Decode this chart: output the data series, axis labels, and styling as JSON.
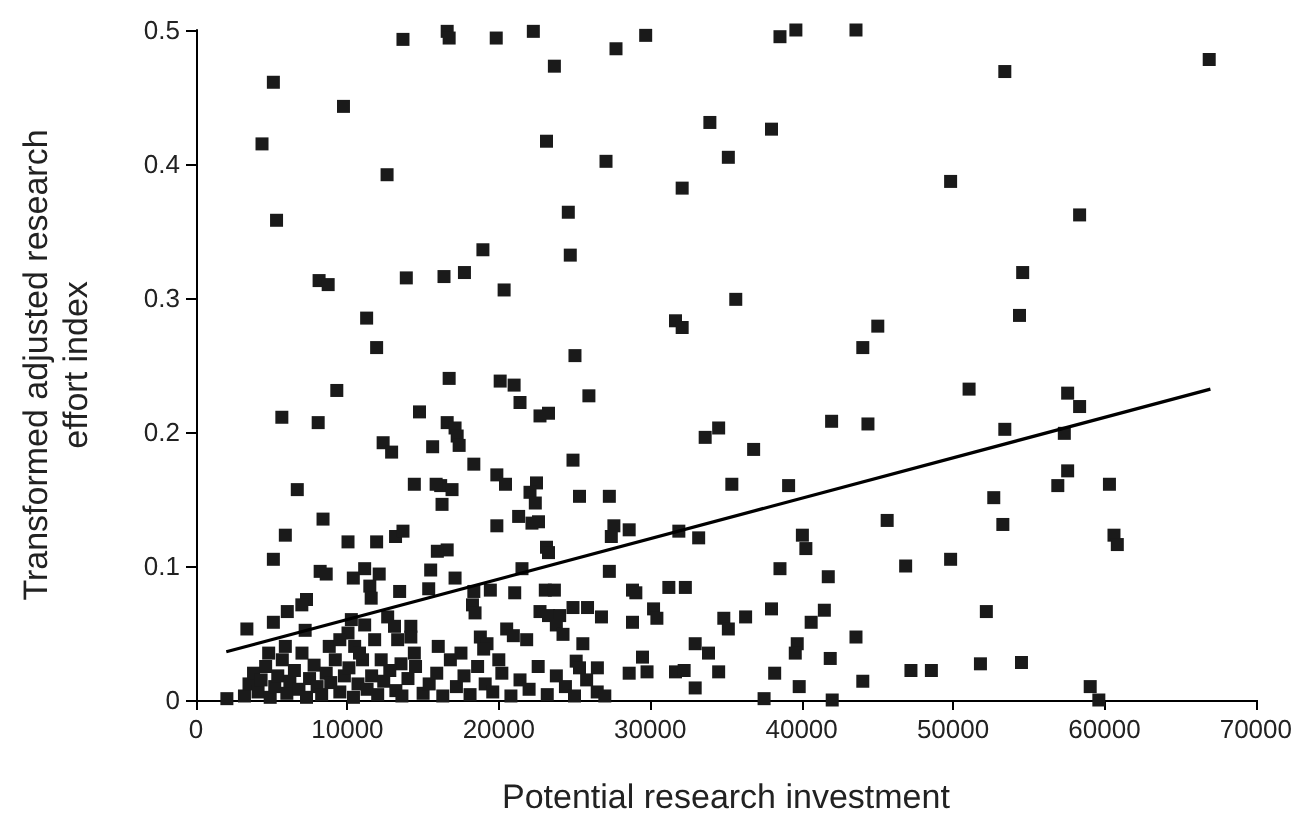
{
  "chart_data": {
    "type": "scatter",
    "xlabel": "Potential research investment",
    "ylabel": "Transformed adjusted research effort index",
    "xlim": [
      0,
      70000
    ],
    "xticks": [
      0,
      10000,
      20000,
      30000,
      40000,
      50000,
      60000,
      70000
    ],
    "ylim": [
      0,
      0.5
    ],
    "yticks": [
      0,
      0.1,
      0.2,
      0.3,
      0.4,
      0.5
    ],
    "grid": false,
    "marker": "square",
    "series": [
      {
        "color": "#1a1a1a",
        "x": [
          5110,
          4360,
          5320,
          9740,
          12620,
          13670,
          16590,
          16720,
          19830,
          22280,
          23670,
          23150,
          24590,
          24720,
          27740,
          29700,
          27080,
          32110,
          33940,
          35160,
          35650,
          18950,
          17730,
          16380,
          13890,
          8130,
          8730,
          20350,
          11270,
          11930,
          25030,
          31670,
          32110,
          38570,
          39620,
          43590,
          53420,
          66920,
          38010,
          49840,
          58360,
          54600,
          54390,
          45030,
          44040,
          51060,
          57570,
          58360,
          41980,
          44380,
          53420,
          57350,
          36830,
          34520,
          35390,
          39140,
          57570,
          56920,
          60330,
          52690,
          53290,
          45650,
          40050,
          40280,
          60630,
          60850,
          38570,
          41760,
          46870,
          49840,
          34860,
          35160,
          36300,
          38010,
          41500,
          40630,
          52200,
          43590,
          39710,
          39580,
          41890,
          38220,
          34520,
          47220,
          48570,
          51810,
          54520,
          44040,
          39840,
          37520,
          42020,
          59060,
          59630,
          16720,
          20090,
          21010,
          21400,
          25950,
          22720,
          23280,
          16590,
          17110,
          17250,
          17380,
          18350,
          24900,
          19870,
          20440,
          22490,
          22060,
          22410,
          25330,
          27300,
          16160,
          16910,
          16250,
          33630,
          21310,
          22190,
          22620,
          19870,
          27600,
          27430,
          28610,
          31890,
          33200,
          16590,
          23150,
          23280,
          27300,
          21530,
          17110,
          18350,
          19440,
          21050,
          23070,
          23670,
          28830,
          29050,
          31230,
          32320,
          18260,
          18430,
          22720,
          23280,
          24020,
          24900,
          25860,
          26780,
          28830,
          30220,
          30440,
          20520,
          20960,
          21840,
          23800,
          24240,
          25550,
          18780,
          19220,
          19000,
          32970,
          33850,
          29490,
          25110,
          25330,
          26510,
          28610,
          29790,
          31670,
          32240,
          32970,
          9300,
          5670,
          8070,
          14760,
          12360,
          12920,
          15630,
          6690,
          14420,
          15860,
          8390,
          5900,
          10040,
          11930,
          13180,
          13670,
          15940,
          5110,
          8200,
          8600,
          10390,
          11140,
          12100,
          11480,
          11570,
          13450,
          15370,
          15500,
          7300,
          6990,
          6030,
          5110,
          3360,
          7210,
          5900,
          10260,
          11140,
          10040,
          12660,
          13110,
          14190,
          14190,
          13320,
          10480,
          11800,
          12230,
          13540,
          14420,
          2040,
          3200,
          3500,
          3800,
          4100,
          4300,
          4600,
          4900,
          5200,
          5400,
          5700,
          6000,
          6200,
          6500,
          6800,
          7000,
          7300,
          7500,
          7800,
          8000,
          8300,
          8600,
          8900,
          9200,
          9500,
          9800,
          10100,
          10400,
          10700,
          11000,
          11300,
          11600,
          12000,
          12400,
          12800,
          13200,
          13600,
          14000,
          14500,
          15000,
          15400,
          15900,
          16300,
          16800,
          17200,
          17700,
          18100,
          18600,
          19100,
          19600,
          20200,
          20800,
          21400,
          22000,
          22600,
          23200,
          23800,
          24400,
          25000,
          25800,
          26500,
          27000,
          8800,
          9500,
          10800,
          4800,
          16000,
          17500,
          20000
        ],
        "values": [
          0.461,
          0.415,
          0.358,
          0.443,
          0.392,
          0.493,
          0.499,
          0.494,
          0.494,
          0.499,
          0.473,
          0.417,
          0.364,
          0.332,
          0.486,
          0.496,
          0.402,
          0.382,
          0.431,
          0.405,
          0.299,
          0.336,
          0.319,
          0.316,
          0.315,
          0.313,
          0.31,
          0.306,
          0.285,
          0.263,
          0.257,
          0.283,
          0.278,
          0.495,
          0.5,
          0.5,
          0.469,
          0.478,
          0.426,
          0.387,
          0.362,
          0.319,
          0.287,
          0.279,
          0.263,
          0.232,
          0.229,
          0.219,
          0.208,
          0.206,
          0.202,
          0.199,
          0.187,
          0.203,
          0.161,
          0.16,
          0.171,
          0.16,
          0.161,
          0.151,
          0.131,
          0.134,
          0.123,
          0.113,
          0.123,
          0.116,
          0.098,
          0.092,
          0.1,
          0.105,
          0.061,
          0.053,
          0.062,
          0.068,
          0.067,
          0.058,
          0.066,
          0.047,
          0.042,
          0.035,
          0.031,
          0.02,
          0.021,
          0.022,
          0.022,
          0.027,
          0.028,
          0.014,
          0.01,
          0.001,
          0,
          0.01,
          0,
          0.24,
          0.238,
          0.235,
          0.222,
          0.227,
          0.212,
          0.214,
          0.207,
          0.203,
          0.197,
          0.19,
          0.176,
          0.179,
          0.168,
          0.161,
          0.162,
          0.155,
          0.147,
          0.152,
          0.152,
          0.16,
          0.157,
          0.146,
          0.196,
          0.137,
          0.132,
          0.133,
          0.13,
          0.13,
          0.122,
          0.127,
          0.126,
          0.121,
          0.112,
          0.114,
          0.11,
          0.096,
          0.098,
          0.091,
          0.081,
          0.082,
          0.08,
          0.082,
          0.082,
          0.082,
          0.08,
          0.084,
          0.084,
          0.071,
          0.065,
          0.066,
          0.063,
          0.063,
          0.069,
          0.069,
          0.062,
          0.058,
          0.068,
          0.061,
          0.053,
          0.048,
          0.045,
          0.056,
          0.049,
          0.042,
          0.047,
          0.042,
          0.038,
          0.042,
          0.035,
          0.032,
          0.029,
          0.024,
          0.024,
          0.02,
          0.021,
          0.021,
          0.022,
          0.009,
          0.231,
          0.211,
          0.207,
          0.215,
          0.192,
          0.185,
          0.189,
          0.157,
          0.161,
          0.161,
          0.135,
          0.123,
          0.118,
          0.118,
          0.122,
          0.126,
          0.111,
          0.105,
          0.096,
          0.094,
          0.091,
          0.098,
          0.094,
          0.085,
          0.076,
          0.081,
          0.083,
          0.097,
          0.075,
          0.071,
          0.066,
          0.058,
          0.053,
          0.052,
          0.04,
          0.06,
          0.056,
          0.05,
          0.062,
          0.055,
          0.055,
          0.047,
          0.045,
          0.04,
          0.045,
          0.03,
          0.027,
          0.035,
          0.001,
          0.003,
          0.012,
          0.02,
          0.006,
          0.015,
          0.025,
          0.002,
          0.01,
          0.018,
          0.03,
          0.005,
          0.014,
          0.022,
          0.008,
          0.035,
          0.002,
          0.016,
          0.026,
          0.01,
          0.004,
          0.02,
          0.013,
          0.03,
          0.006,
          0.018,
          0.024,
          0.002,
          0.012,
          0.03,
          0.008,
          0.018,
          0.004,
          0.014,
          0.022,
          0.007,
          0.003,
          0.016,
          0.025,
          0.005,
          0.012,
          0.02,
          0.003,
          0.03,
          0.01,
          0.018,
          0.004,
          0.025,
          0.012,
          0.006,
          0.02,
          0.003,
          0.015,
          0.008,
          0.025,
          0.004,
          0.018,
          0.01,
          0.003,
          0.015,
          0.006,
          0.003,
          0.04,
          0.045,
          0.035,
          0.035,
          0.04,
          0.035,
          0.03
        ]
      },
      {
        "type": "line",
        "color": "#000000",
        "marker": "none",
        "x": [
          2000,
          67000
        ],
        "values": [
          0.036,
          0.232
        ]
      }
    ]
  }
}
